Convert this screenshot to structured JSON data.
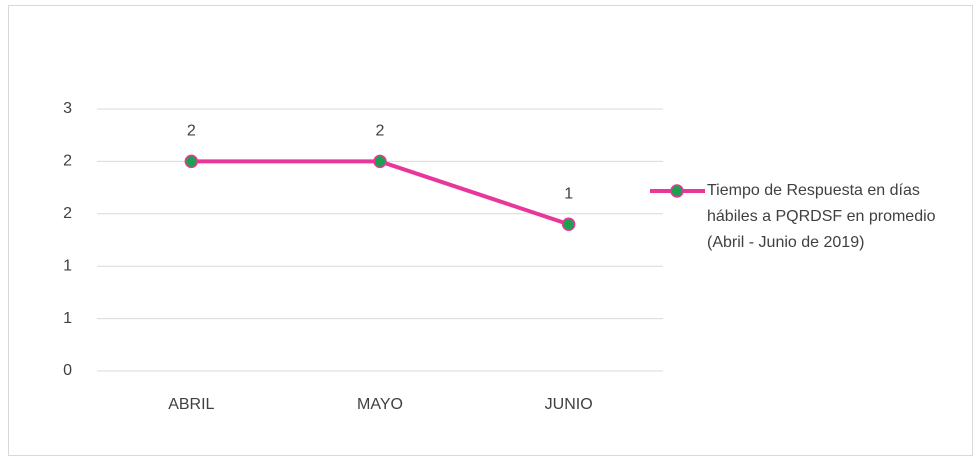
{
  "chart_data": {
    "type": "line",
    "categories": [
      "ABRIL",
      "MAYO",
      "JUNIO"
    ],
    "series": [
      {
        "name": "Tiempo de Respuesta  en días hábiles  a PQRDSF en promedio (Abril - Junio de 2019)",
        "color": "#e8379a",
        "marker_color": "#1fa050",
        "values": [
          2,
          2,
          1.4
        ],
        "value_labels": [
          "2",
          "2",
          "1"
        ]
      }
    ],
    "ylim": [
      0,
      2.5
    ],
    "yticks": [
      0,
      {
        "value": 0.5,
        "label": "1"
      },
      1,
      {
        "value": 1.5,
        "label": "2"
      },
      2,
      {
        "value": 2.5,
        "label": "3"
      }
    ],
    "grid": true,
    "legend": "right"
  }
}
